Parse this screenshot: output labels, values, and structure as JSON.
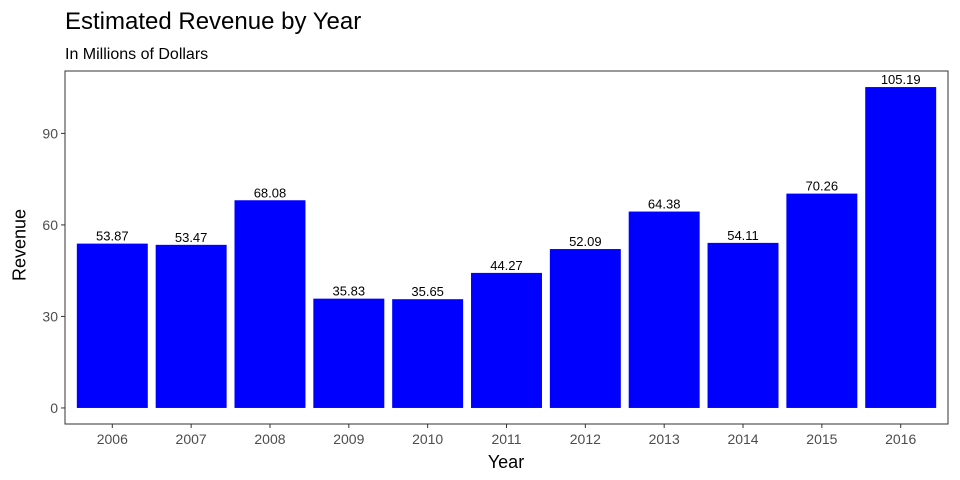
{
  "chart_data": {
    "type": "bar",
    "title": "Estimated Revenue by Year",
    "subtitle": "In Millions of Dollars",
    "xlabel": "Year",
    "ylabel": "Revenue",
    "categories": [
      "2006",
      "2007",
      "2008",
      "2009",
      "2010",
      "2011",
      "2012",
      "2013",
      "2014",
      "2015",
      "2016"
    ],
    "values": [
      53.87,
      53.47,
      68.08,
      35.83,
      35.65,
      44.27,
      52.09,
      64.38,
      54.11,
      70.26,
      105.19
    ],
    "value_labels": [
      "53.87",
      "53.47",
      "68.08",
      "35.83",
      "35.65",
      "44.27",
      "52.09",
      "64.38",
      "54.11",
      "70.26",
      "105.19"
    ],
    "yticks": [
      0,
      30,
      60,
      90
    ],
    "ylim": [
      -5.26,
      110.45
    ],
    "bar_color": "#0000ff",
    "grid": false,
    "legend": "none"
  }
}
